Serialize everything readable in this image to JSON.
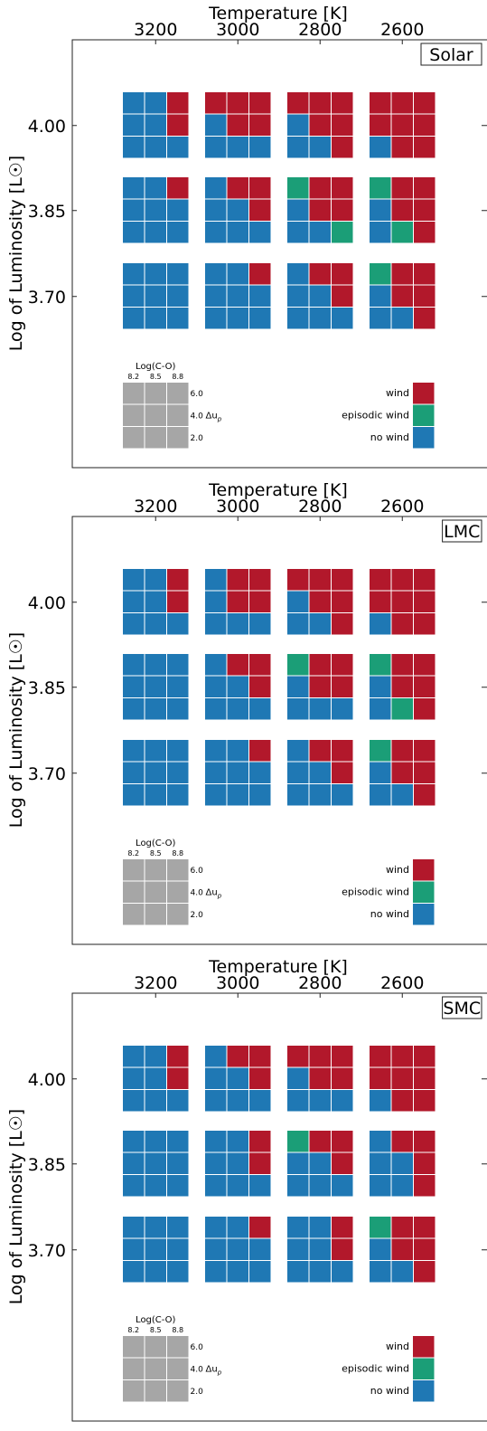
{
  "chart_data": [
    {
      "type": "heatmap",
      "panel_label": "Solar",
      "xlabel": "Temperature [K]",
      "ylabel": "Log of Luminosity [L☉]",
      "x_ticks": [
        "3200",
        "3000",
        "2800",
        "2600"
      ],
      "y_ticks": [
        "4.00",
        "3.85",
        "3.70"
      ],
      "temperatures": [
        3200,
        3000,
        2800,
        2600
      ],
      "luminosities": [
        4.0,
        3.85,
        3.7
      ],
      "grid_rows_deltaup": [
        6.0,
        4.0,
        2.0
      ],
      "grid_cols_logCO": [
        8.2,
        8.5,
        8.8
      ],
      "cells": [
        [
          [
            "NNW",
            "NNW",
            "NNN"
          ],
          [
            "WWW",
            "NWW",
            "NNN"
          ],
          [
            "WWW",
            "NWW",
            "NNW"
          ],
          [
            "WWW",
            "WWW",
            "NWW"
          ]
        ],
        [
          [
            "NNW",
            "NNN",
            "NNN"
          ],
          [
            "NWW",
            "NNW",
            "NNN"
          ],
          [
            "EWW",
            "NWW",
            "NNE"
          ],
          [
            "EWW",
            "NWW",
            "NEW"
          ]
        ],
        [
          [
            "NNN",
            "NNN",
            "NNN"
          ],
          [
            "NNW",
            "NNN",
            "NNN"
          ],
          [
            "NWW",
            "NNW",
            "NNN"
          ],
          [
            "EWW",
            "NWW",
            "NNW"
          ]
        ]
      ]
    },
    {
      "type": "heatmap",
      "panel_label": "LMC",
      "xlabel": "Temperature [K]",
      "ylabel": "Log of Luminosity [L☉]",
      "x_ticks": [
        "3200",
        "3000",
        "2800",
        "2600"
      ],
      "y_ticks": [
        "4.00",
        "3.85",
        "3.70"
      ],
      "temperatures": [
        3200,
        3000,
        2800,
        2600
      ],
      "luminosities": [
        4.0,
        3.85,
        3.7
      ],
      "grid_rows_deltaup": [
        6.0,
        4.0,
        2.0
      ],
      "grid_cols_logCO": [
        8.2,
        8.5,
        8.8
      ],
      "cells": [
        [
          [
            "NNW",
            "NNW",
            "NNN"
          ],
          [
            "NWW",
            "NWW",
            "NNN"
          ],
          [
            "WWW",
            "NWW",
            "NNW"
          ],
          [
            "WWW",
            "WWW",
            "NWW"
          ]
        ],
        [
          [
            "NNN",
            "NNN",
            "NNN"
          ],
          [
            "NWW",
            "NNW",
            "NNN"
          ],
          [
            "EWW",
            "NWW",
            "NNN"
          ],
          [
            "EWW",
            "NWW",
            "NEW"
          ]
        ],
        [
          [
            "NNN",
            "NNN",
            "NNN"
          ],
          [
            "NNW",
            "NNN",
            "NNN"
          ],
          [
            "NWW",
            "NNW",
            "NNN"
          ],
          [
            "EWW",
            "NWW",
            "NNW"
          ]
        ]
      ]
    },
    {
      "type": "heatmap",
      "panel_label": "SMC",
      "xlabel": "Temperature [K]",
      "ylabel": "Log of Luminosity [L☉]",
      "x_ticks": [
        "3200",
        "3000",
        "2800",
        "2600"
      ],
      "y_ticks": [
        "4.00",
        "3.85",
        "3.70"
      ],
      "temperatures": [
        3200,
        3000,
        2800,
        2600
      ],
      "luminosities": [
        4.0,
        3.85,
        3.7
      ],
      "grid_rows_deltaup": [
        6.0,
        4.0,
        2.0
      ],
      "grid_cols_logCO": [
        8.2,
        8.5,
        8.8
      ],
      "cells": [
        [
          [
            "NNW",
            "NNW",
            "NNN"
          ],
          [
            "NWW",
            "NNW",
            "NNN"
          ],
          [
            "WWW",
            "NWW",
            "NNN"
          ],
          [
            "WWW",
            "WWW",
            "NWW"
          ]
        ],
        [
          [
            "NNN",
            "NNN",
            "NNN"
          ],
          [
            "NNW",
            "NNW",
            "NNN"
          ],
          [
            "EWW",
            "NNW",
            "NNN"
          ],
          [
            "NWW",
            "NNW",
            "NNW"
          ]
        ],
        [
          [
            "NNN",
            "NNN",
            "NNN"
          ],
          [
            "NNW",
            "NNN",
            "NNN"
          ],
          [
            "NNW",
            "NNW",
            "NNN"
          ],
          [
            "EWW",
            "NWW",
            "NNW"
          ]
        ]
      ]
    }
  ],
  "cell_key": {
    "W": "wind",
    "E": "episodic wind",
    "N": "no wind"
  },
  "legend": {
    "grid_title": "Log(C-O)",
    "grid_col_labels": [
      "8.2",
      "8.5",
      "8.8"
    ],
    "grid_row_labels": [
      "6.0",
      "4.0",
      "2.0"
    ],
    "row_axis_label": "Δu",
    "row_axis_subscript": "p",
    "entries": [
      {
        "label": "wind",
        "color": "#b2182b"
      },
      {
        "label": "episodic wind",
        "color": "#1b9e77"
      },
      {
        "label": "no wind",
        "color": "#1f78b4"
      }
    ]
  },
  "colors": {
    "wind": "#b2182b",
    "episodic": "#1b9e77",
    "nowind": "#1f78b4",
    "legend_grid": "#a6a6a6"
  }
}
